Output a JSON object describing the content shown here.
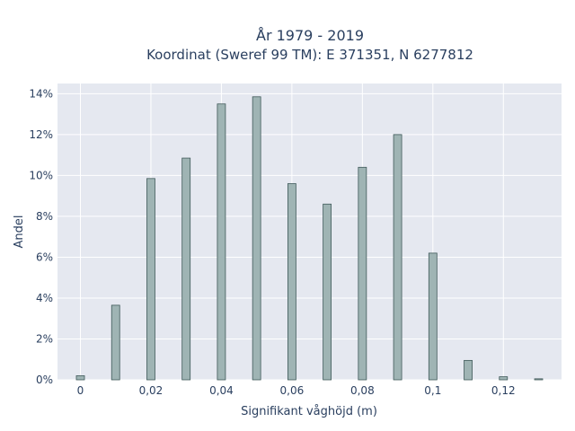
{
  "chart_data": {
    "type": "bar",
    "title_line1": "År 1979 - 2019",
    "title_line2": "Koordinat (Sweref 99 TM): E 371351, N 6277812",
    "xlabel": "Signifikant våghöjd (m)",
    "ylabel": "Andel",
    "x": [
      0,
      0.01,
      0.02,
      0.03,
      0.04,
      0.05,
      0.06,
      0.07,
      0.08,
      0.09,
      0.1,
      0.11,
      0.12,
      0.13
    ],
    "values": [
      0.2,
      3.65,
      9.85,
      10.85,
      13.5,
      13.85,
      9.6,
      8.6,
      10.4,
      12.0,
      6.2,
      0.95,
      0.15,
      0.05
    ],
    "xlim": [
      -0.0065,
      0.1365
    ],
    "ylim": [
      0,
      14.5
    ],
    "x_ticks": [
      0,
      0.02,
      0.04,
      0.06,
      0.08,
      0.1,
      0.12
    ],
    "x_tick_labels": [
      "0",
      "0,02",
      "0,04",
      "0,06",
      "0,08",
      "0,1",
      "0,12"
    ],
    "y_ticks": [
      0,
      2,
      4,
      6,
      8,
      10,
      12,
      14
    ],
    "y_tick_labels": [
      "0%",
      "2%",
      "4%",
      "6%",
      "8%",
      "10%",
      "12%",
      "14%"
    ],
    "grid": true,
    "colors": {
      "plot_bg": "#e5e8f0",
      "grid": "#ffffff",
      "bar_fill": "#9fb4b4",
      "bar_stroke": "#3f5959",
      "text": "#2a3f5f"
    }
  }
}
